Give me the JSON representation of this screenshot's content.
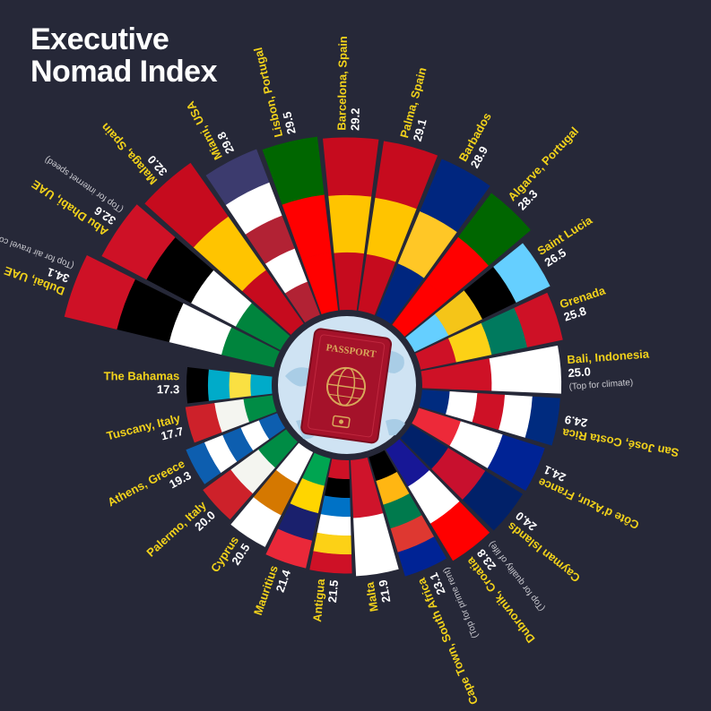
{
  "header": {
    "title_line1": "Executive",
    "title_line2": "Nomad Index"
  },
  "center": {
    "passport_label": "PASSPORT"
  },
  "colors": {
    "background": "#262838",
    "name": "#f2d21b",
    "value": "#ffffff",
    "note": "#c9c9cf",
    "globe": "#cfe3f3",
    "passport": "#a5122a",
    "gold": "#d8a85a"
  },
  "chart_data": {
    "type": "bar",
    "layout": "radial",
    "title": "Executive Nomad Index",
    "categories": [
      "Dubai, UAE",
      "Abu Dhabi, UAE",
      "Malaga, Spain",
      "Miami, USA",
      "Lisbon, Portugal",
      "Barcelona, Spain",
      "Palma, Spain",
      "Barbados",
      "Algarve, Portugal",
      "Saint Lucia",
      "Grenada",
      "Bali, Indonesia",
      "San José, Costa Rica",
      "Côte d'Azur, France",
      "Cayman Islands",
      "Dubrovnik, Croatia",
      "Cape Town, South Africa",
      "Malta",
      "Antigua",
      "Mauritius",
      "Cyprus",
      "Palermo, Italy",
      "Athens, Greece",
      "Tuscany, Italy",
      "The Bahamas"
    ],
    "values": [
      34.1,
      32.6,
      32.0,
      29.8,
      29.5,
      29.2,
      29.1,
      28.9,
      28.3,
      26.5,
      25.8,
      25.0,
      24.9,
      24.1,
      24.0,
      23.8,
      23.1,
      21.9,
      21.5,
      21.4,
      20.5,
      20.0,
      19.3,
      17.7,
      17.3
    ],
    "value_labels": [
      "34.1",
      "32.6",
      "32.0",
      "29.8",
      "29.5",
      "29.2",
      "29.1",
      "28.9",
      "28.3",
      "26.5",
      "25.8",
      "25.0",
      "24.9",
      "24.1",
      "24.0",
      "23.8",
      "23.1",
      "21.9",
      "21.5",
      "21.4",
      "20.5",
      "20.0",
      "19.3",
      "17.7",
      "17.3"
    ],
    "notes": [
      "(Top for air travel connectivity)",
      "(Top for internet speed)",
      "",
      "",
      "",
      "",
      "",
      "",
      "",
      "",
      "",
      "(Top for climate)",
      "",
      "",
      "",
      "(Top for quality of life)",
      "(Top for prime rent)",
      "",
      "",
      "",
      "",
      "",
      "",
      "",
      ""
    ],
    "flag_icons": [
      "uae-flag-icon",
      "uae-flag-icon",
      "spain-flag-icon",
      "usa-flag-icon",
      "portugal-flag-icon",
      "spain-flag-icon",
      "spain-flag-icon",
      "barbados-flag-icon",
      "portugal-flag-icon",
      "saint-lucia-flag-icon",
      "grenada-flag-icon",
      "indonesia-flag-icon",
      "costa-rica-flag-icon",
      "france-flag-icon",
      "cayman-islands-flag-icon",
      "croatia-flag-icon",
      "south-africa-flag-icon",
      "malta-flag-icon",
      "antigua-flag-icon",
      "mauritius-flag-icon",
      "cyprus-flag-icon",
      "italy-flag-icon",
      "greece-flag-icon",
      "italy-flag-icon",
      "bahamas-flag-icon"
    ],
    "flag_colors": [
      [
        "#00843d",
        "#ffffff",
        "#000000",
        "#ce1126"
      ],
      [
        "#00843d",
        "#ffffff",
        "#000000",
        "#ce1126"
      ],
      [
        "#c60b1e",
        "#ffc400",
        "#c60b1e"
      ],
      [
        "#b22234",
        "#ffffff",
        "#b22234",
        "#ffffff",
        "#3c3b6e"
      ],
      [
        "#ff0000",
        "#ff0000",
        "#006600"
      ],
      [
        "#c60b1e",
        "#ffc400",
        "#c60b1e"
      ],
      [
        "#c60b1e",
        "#ffc400",
        "#c60b1e"
      ],
      [
        "#00267f",
        "#ffc726",
        "#00267f"
      ],
      [
        "#ff0000",
        "#ff0000",
        "#006600"
      ],
      [
        "#65cfff",
        "#f5c518",
        "#000000",
        "#65cfff"
      ],
      [
        "#ce1126",
        "#fcd116",
        "#007a5e",
        "#ce1126"
      ],
      [
        "#ce1126",
        "#ffffff"
      ],
      [
        "#002b7f",
        "#ffffff",
        "#ce1126",
        "#ffffff",
        "#002b7f"
      ],
      [
        "#ed2939",
        "#ffffff",
        "#002395"
      ],
      [
        "#012169",
        "#c8102e",
        "#012169"
      ],
      [
        "#171796",
        "#ffffff",
        "#ff0000"
      ],
      [
        "#000000",
        "#ffb612",
        "#007a4d",
        "#de3831",
        "#002395"
      ],
      [
        "#cf142b",
        "#ffffff"
      ],
      [
        "#ce1126",
        "#000000",
        "#0072c6",
        "#ffffff",
        "#fcd116",
        "#ce1126"
      ],
      [
        "#00a551",
        "#ffd500",
        "#1a206d",
        "#ea2839"
      ],
      [
        "#ffffff",
        "#d57800",
        "#ffffff"
      ],
      [
        "#008c45",
        "#f4f5f0",
        "#cd212a"
      ],
      [
        "#0d5eaf",
        "#ffffff",
        "#0d5eaf",
        "#ffffff",
        "#0d5eaf"
      ],
      [
        "#008c45",
        "#f4f5f0",
        "#cd212a"
      ],
      [
        "#00abc9",
        "#fae042",
        "#00abc9",
        "#000000"
      ]
    ]
  }
}
